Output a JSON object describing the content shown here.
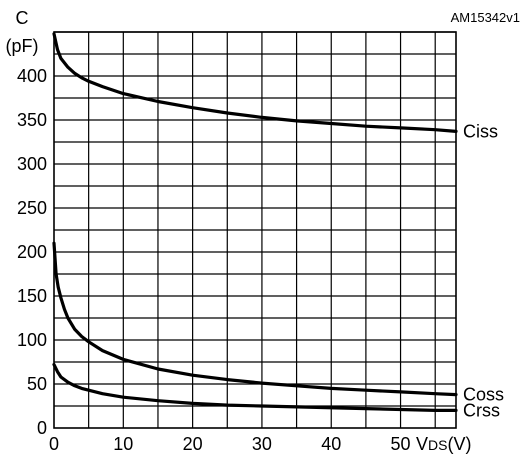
{
  "figure_id": "AM15342v1",
  "chart_data": {
    "type": "line",
    "ylabel_top": "C",
    "ylabel_unit": "(pF)",
    "xlabel_main": "V",
    "xlabel_sub": "DS",
    "xlabel_unit": "(V)",
    "xlim": [
      0,
      58
    ],
    "ylim": [
      0,
      450
    ],
    "xticks": [
      "0",
      "10",
      "20",
      "30",
      "40",
      "50"
    ],
    "yticks": [
      "0",
      "50",
      "100",
      "150",
      "200",
      "250",
      "300",
      "350",
      "400"
    ],
    "grid": true,
    "series": [
      {
        "name": "Ciss",
        "x": [
          0,
          0.5,
          1,
          2,
          3,
          4,
          5,
          7,
          10,
          15,
          20,
          25,
          30,
          35,
          40,
          45,
          50,
          55,
          58
        ],
        "y": [
          448,
          430,
          420,
          410,
          403,
          398,
          394,
          388,
          380,
          371,
          364,
          358,
          353,
          349,
          346,
          343,
          341,
          339,
          337
        ]
      },
      {
        "name": "Coss",
        "x": [
          0,
          0.3,
          0.6,
          1,
          1.5,
          2,
          3,
          4,
          5,
          7,
          10,
          15,
          20,
          25,
          30,
          35,
          40,
          45,
          50,
          55,
          58
        ],
        "y": [
          210,
          175,
          160,
          148,
          135,
          125,
          112,
          104,
          98,
          88,
          78,
          67,
          60,
          55,
          51,
          48,
          45,
          43,
          41,
          39,
          38
        ]
      },
      {
        "name": "Crss",
        "x": [
          0,
          0.5,
          1,
          2,
          3,
          4,
          5,
          7,
          10,
          15,
          20,
          25,
          30,
          35,
          40,
          45,
          50,
          55,
          58
        ],
        "y": [
          72,
          64,
          58,
          52,
          48,
          45,
          43,
          39,
          35,
          31,
          28,
          26,
          25,
          24,
          23,
          22,
          21,
          20,
          20
        ]
      }
    ]
  }
}
